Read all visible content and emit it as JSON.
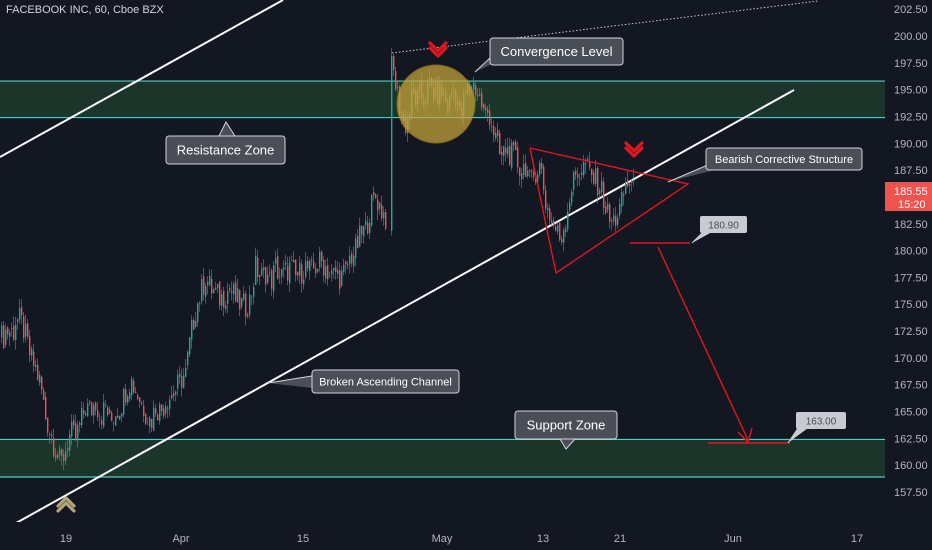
{
  "header": {
    "title": "FACEBOOK INC, 60, Cboe BZX"
  },
  "colors": {
    "background": "#131722",
    "up_candle": "#26a69a",
    "down_candle": "#ef5350",
    "zone_fill": "#1f3b2c",
    "zone_line": "#4dd0c4",
    "channel_line": "#ffffff",
    "projection": "#e0171f",
    "convergence_circle": "#c8a63a",
    "callout_bg": "#4a4e57",
    "price_tag": "#ef5350",
    "axis_text": "#b2b5be"
  },
  "chart_data": {
    "type": "candlestick",
    "title": "FACEBOOK INC, 60, Cboe BZX",
    "ylim": [
      155.5,
      204
    ],
    "y_ticks": [
      "157.50",
      "160.00",
      "162.50",
      "165.00",
      "167.50",
      "170.00",
      "172.50",
      "175.00",
      "177.50",
      "180.00",
      "182.50",
      "185.00",
      "187.50",
      "190.00",
      "192.50",
      "195.00",
      "197.50",
      "200.00",
      "202.50"
    ],
    "x_ticks": [
      "19",
      "Apr",
      "15",
      "May",
      "13",
      "21",
      "Jun",
      "17"
    ],
    "last_price": {
      "price": "185.55",
      "time": "15:20"
    },
    "price_path": [
      [
        0,
        172.0
      ],
      [
        10,
        172.5
      ],
      [
        20,
        173.5
      ],
      [
        25,
        172.0
      ],
      [
        30,
        170.0
      ],
      [
        35,
        169.0
      ],
      [
        40,
        167.5
      ],
      [
        45,
        164.5
      ],
      [
        50,
        163.0
      ],
      [
        55,
        161.5
      ],
      [
        60,
        160.0
      ],
      [
        65,
        161.5
      ],
      [
        70,
        163.0
      ],
      [
        75,
        162.5
      ],
      [
        80,
        164.0
      ],
      [
        85,
        165.5
      ],
      [
        90,
        165.0
      ],
      [
        95,
        166.0
      ],
      [
        100,
        164.5
      ],
      [
        105,
        165.5
      ],
      [
        110,
        164.0
      ],
      [
        115,
        165.0
      ],
      [
        120,
        165.5
      ],
      [
        125,
        167.0
      ],
      [
        130,
        168.0
      ],
      [
        135,
        167.0
      ],
      [
        140,
        166.0
      ],
      [
        145,
        165.0
      ],
      [
        150,
        164.0
      ],
      [
        155,
        165.5
      ],
      [
        160,
        165.0
      ],
      [
        165,
        166.0
      ],
      [
        170,
        166.5
      ],
      [
        175,
        167.0
      ],
      [
        180,
        168.0
      ],
      [
        185,
        168.5
      ],
      [
        190,
        172.0
      ],
      [
        195,
        174.5
      ],
      [
        200,
        176.0
      ],
      [
        205,
        177.5
      ],
      [
        210,
        176.5
      ],
      [
        215,
        176.0
      ],
      [
        220,
        175.5
      ],
      [
        225,
        176.0
      ],
      [
        230,
        176.5
      ],
      [
        235,
        175.5
      ],
      [
        240,
        175.0
      ],
      [
        245,
        174.8
      ],
      [
        250,
        175.5
      ],
      [
        255,
        178.5
      ],
      [
        260,
        177.5
      ],
      [
        265,
        178.0
      ],
      [
        270,
        177.0
      ],
      [
        275,
        178.5
      ],
      [
        280,
        177.5
      ],
      [
        285,
        178.0
      ],
      [
        290,
        178.5
      ],
      [
        295,
        177.5
      ],
      [
        300,
        178.0
      ],
      [
        305,
        178.5
      ],
      [
        310,
        178.0
      ],
      [
        315,
        178.5
      ],
      [
        320,
        179.0
      ],
      [
        325,
        178.5
      ],
      [
        330,
        177.5
      ],
      [
        335,
        178.0
      ],
      [
        340,
        177.5
      ],
      [
        345,
        178.0
      ],
      [
        350,
        179.5
      ],
      [
        355,
        180.0
      ],
      [
        360,
        181.5
      ],
      [
        365,
        182.0
      ],
      [
        370,
        184.0
      ],
      [
        375,
        185.0
      ],
      [
        380,
        184.0
      ],
      [
        385,
        183.0
      ],
      [
        392,
        197.0
      ],
      [
        396,
        195.0
      ],
      [
        400,
        193.0
      ],
      [
        404,
        191.5
      ],
      [
        408,
        192.5
      ],
      [
        412,
        194.5
      ],
      [
        416,
        194.0
      ],
      [
        420,
        194.5
      ],
      [
        424,
        194.0
      ],
      [
        428,
        195.5
      ],
      [
        432,
        195.0
      ],
      [
        436,
        194.5
      ],
      [
        440,
        195.0
      ],
      [
        444,
        194.0
      ],
      [
        448,
        193.5
      ],
      [
        452,
        195.0
      ],
      [
        456,
        194.5
      ],
      [
        460,
        192.0
      ],
      [
        464,
        194.5
      ],
      [
        468,
        195.0
      ],
      [
        472,
        195.5
      ],
      [
        476,
        195.0
      ],
      [
        480,
        194.0
      ],
      [
        484,
        192.5
      ],
      [
        488,
        193.0
      ],
      [
        492,
        191.5
      ],
      [
        496,
        190.0
      ],
      [
        500,
        188.5
      ],
      [
        505,
        189.5
      ],
      [
        510,
        189.0
      ],
      [
        515,
        188.5
      ],
      [
        520,
        187.5
      ],
      [
        525,
        188.0
      ],
      [
        530,
        186.0
      ],
      [
        535,
        187.5
      ],
      [
        540,
        188.0
      ],
      [
        545,
        184.5
      ],
      [
        550,
        183.0
      ],
      [
        555,
        182.0
      ],
      [
        560,
        181.0
      ],
      [
        565,
        183.0
      ],
      [
        570,
        185.5
      ],
      [
        575,
        187.0
      ],
      [
        580,
        187.5
      ],
      [
        585,
        188.0
      ],
      [
        590,
        187.0
      ],
      [
        595,
        186.5
      ],
      [
        600,
        186.0
      ],
      [
        605,
        184.0
      ],
      [
        610,
        182.5
      ],
      [
        615,
        183.0
      ],
      [
        620,
        184.0
      ],
      [
        625,
        186.0
      ],
      [
        630,
        186.5
      ],
      [
        634,
        185.5
      ]
    ]
  },
  "annotations": {
    "convergence_level": "Convergence Level",
    "resistance_zone": "Resistance Zone",
    "bearish_corrective_structure": "Bearish Corrective Structure",
    "broken_ascending_channel": "Broken Ascending Channel",
    "support_zone": "Support Zone",
    "target_1": "180.90",
    "target_2": "163.00"
  }
}
